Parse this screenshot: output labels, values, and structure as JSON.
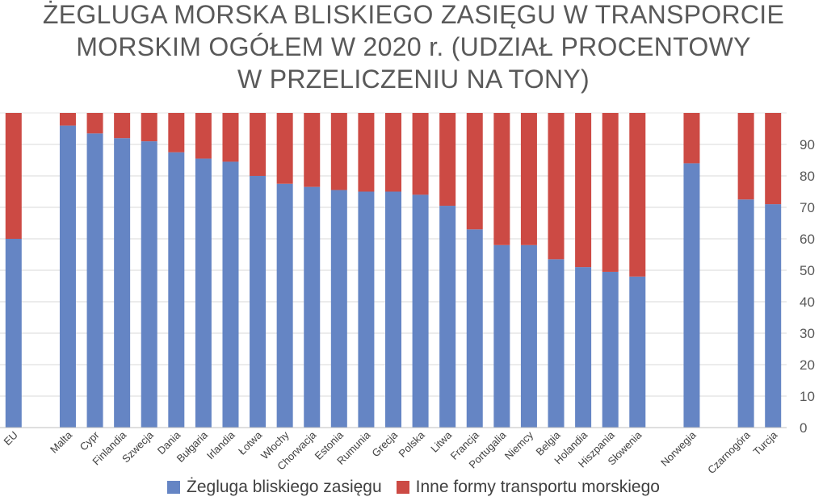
{
  "chart_data": {
    "type": "bar",
    "stacked": true,
    "title_lines": [
      "ŻEGLUGA MORSKA BLISKIEGO ZASIĘGU W TRANSPORCIE",
      "MORSKIM OGÓŁEM W 2020 r. (UDZIAŁ PROCENTOWY",
      "W PRZELICZENIU NA TONY)"
    ],
    "categories": [
      "EU",
      "",
      "Malta",
      "Cypr",
      "Finlandia",
      "Szwecja",
      "Dania",
      "Bułgaria",
      "Irlandia",
      "Łotwa",
      "Włochy",
      "Chorwacja",
      "Estonia",
      "Rumunia",
      "Grecja",
      "Polska",
      "Litwa",
      "Francja",
      "Portugalia",
      "Niemcy",
      "Belgia",
      "Holandia",
      "Hiszpania",
      "Słowenia",
      "",
      "Norwegia",
      "",
      "Czarnogóra",
      "Turcja"
    ],
    "series": [
      {
        "name": "Żegluga bliskiego zasięgu",
        "color": "#6585c4",
        "values": [
          60,
          null,
          96,
          93.5,
          92,
          91,
          87.5,
          85.5,
          84.5,
          80,
          77.5,
          76.5,
          75.5,
          75,
          75,
          74,
          70.5,
          63,
          58,
          58,
          53.5,
          51,
          49.5,
          48,
          null,
          84,
          null,
          72.5,
          71
        ]
      },
      {
        "name": "Inne formy transportu morskiego",
        "color": "#cc4a44",
        "values": [
          40,
          null,
          4,
          6.5,
          8,
          9,
          12.5,
          14.5,
          15.5,
          20,
          22.5,
          23.5,
          24.5,
          25,
          25,
          26,
          29.5,
          37,
          42,
          42,
          46.5,
          49,
          50.5,
          52,
          null,
          16,
          null,
          27.5,
          29
        ]
      }
    ],
    "yticks": [
      "0",
      "10",
      "20",
      "30",
      "40",
      "50",
      "60",
      "70",
      "80",
      "90"
    ],
    "ylim": [
      0,
      100
    ],
    "y_axis_position": "right",
    "grid": true,
    "legend_position": "bottom"
  }
}
